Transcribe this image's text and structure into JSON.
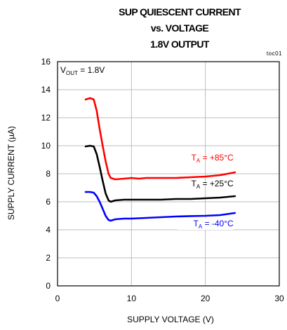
{
  "chart_data": {
    "type": "line",
    "title_lines": [
      "SUP QUIESCENT CURRENT",
      "vs. VOLTAGE",
      "1.8V OUTPUT"
    ],
    "figure_id": "toc01",
    "condition": {
      "main": "V",
      "sub": "OUT",
      "rest": " = 1.8V"
    },
    "xlabel": "SUPPLY VOLTAGE (V)",
    "ylabel": "SUPPLY CURRENT (µA)",
    "xlim": [
      0,
      30
    ],
    "ylim": [
      0,
      16
    ],
    "xticks": [
      0,
      10,
      20,
      30
    ],
    "yticks": [
      0,
      2,
      4,
      6,
      8,
      10,
      12,
      14,
      16
    ],
    "grid": true,
    "series": [
      {
        "name": "+85°C",
        "label": {
          "main": "T",
          "sub": "A",
          "rest": " = +85°C"
        },
        "color": "#ff0000",
        "points": [
          [
            3.8,
            13.3
          ],
          [
            4.4,
            13.4
          ],
          [
            4.9,
            13.3
          ],
          [
            5.3,
            12.5
          ],
          [
            5.7,
            11.2
          ],
          [
            6.1,
            10.0
          ],
          [
            6.5,
            8.9
          ],
          [
            6.9,
            8.0
          ],
          [
            7.2,
            7.7
          ],
          [
            7.8,
            7.6
          ],
          [
            9,
            7.65
          ],
          [
            10,
            7.7
          ],
          [
            11,
            7.65
          ],
          [
            12,
            7.7
          ],
          [
            14,
            7.7
          ],
          [
            16,
            7.7
          ],
          [
            18,
            7.75
          ],
          [
            20,
            7.8
          ],
          [
            22,
            7.9
          ],
          [
            24,
            8.1
          ]
        ]
      },
      {
        "name": "+25°C",
        "label": {
          "main": "T",
          "sub": "A",
          "rest": " = +25°C"
        },
        "color": "#000000",
        "points": [
          [
            3.8,
            9.95
          ],
          [
            4.4,
            10.0
          ],
          [
            4.9,
            9.95
          ],
          [
            5.3,
            9.4
          ],
          [
            5.7,
            8.5
          ],
          [
            6.1,
            7.5
          ],
          [
            6.5,
            6.6
          ],
          [
            6.9,
            6.1
          ],
          [
            7.2,
            6.0
          ],
          [
            7.8,
            6.1
          ],
          [
            9,
            6.15
          ],
          [
            10,
            6.15
          ],
          [
            12,
            6.15
          ],
          [
            14,
            6.15
          ],
          [
            16,
            6.2
          ],
          [
            18,
            6.2
          ],
          [
            20,
            6.25
          ],
          [
            22,
            6.3
          ],
          [
            24,
            6.4
          ]
        ]
      },
      {
        "name": "-40°C",
        "label": {
          "main": "T",
          "sub": "A",
          "rest": " = -40°C"
        },
        "color": "#0000ff",
        "points": [
          [
            3.8,
            6.7
          ],
          [
            4.4,
            6.7
          ],
          [
            4.9,
            6.65
          ],
          [
            5.3,
            6.4
          ],
          [
            5.7,
            6.0
          ],
          [
            6.1,
            5.5
          ],
          [
            6.5,
            5.0
          ],
          [
            6.9,
            4.7
          ],
          [
            7.2,
            4.65
          ],
          [
            7.8,
            4.75
          ],
          [
            9,
            4.8
          ],
          [
            10,
            4.8
          ],
          [
            12,
            4.85
          ],
          [
            14,
            4.9
          ],
          [
            16,
            4.95
          ],
          [
            18,
            4.98
          ],
          [
            20,
            5.0
          ],
          [
            22,
            5.05
          ],
          [
            24,
            5.2
          ]
        ]
      }
    ]
  }
}
